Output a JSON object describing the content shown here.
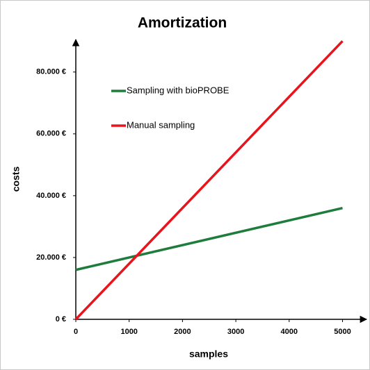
{
  "chart_data": {
    "type": "line",
    "title": "Amortization",
    "x_label": "samples",
    "y_label": "costs",
    "x": [
      0,
      5000
    ],
    "series": [
      {
        "name": "Sampling with bioPROBE",
        "color": "#1e7d3c",
        "values": [
          16000,
          36000
        ]
      },
      {
        "name": "Manual sampling",
        "color": "#e8141c",
        "values": [
          0,
          90000
        ]
      }
    ],
    "xlim": [
      0,
      5450
    ],
    "ylim": [
      0,
      90500
    ],
    "xticks": [
      0,
      1000,
      2000,
      3000,
      4000,
      5000
    ],
    "yticks": [
      {
        "value": 0,
        "label": "0 €"
      },
      {
        "value": 20000,
        "label": "20.000 €"
      },
      {
        "value": 40000,
        "label": "40.000 €"
      },
      {
        "value": 60000,
        "label": "60.000 €"
      },
      {
        "value": 80000,
        "label": "80.000 €"
      }
    ],
    "grid": false,
    "legend": "upper left"
  }
}
